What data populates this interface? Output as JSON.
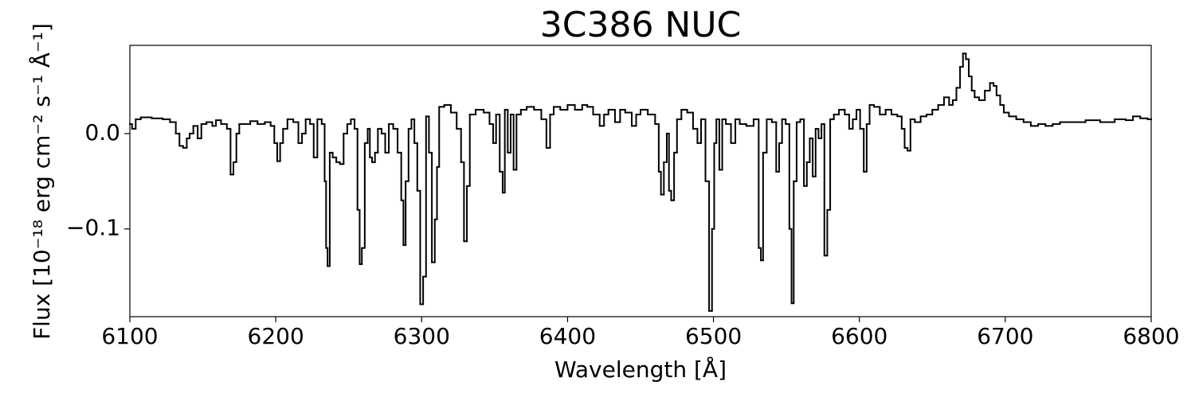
{
  "chart_data": {
    "type": "line",
    "title": "3C386 NUC",
    "xlabel": "Wavelength [Å]",
    "ylabel": "Flux [10⁻¹⁸ erg cm⁻² s⁻¹ Å⁻¹]",
    "drawstyle": "steps-mid",
    "color": "#000000",
    "x": [
      6100,
      6103,
      6105,
      6110,
      6120,
      6125,
      6130,
      6133,
      6135,
      6138,
      6140,
      6142,
      6145,
      6148,
      6150,
      6155,
      6158,
      6160,
      6165,
      6168,
      6170,
      6172,
      6174,
      6176,
      6180,
      6185,
      6190,
      6195,
      6198,
      6200,
      6202,
      6204,
      6206,
      6210,
      6214,
      6217,
      6219,
      6222,
      6225,
      6227,
      6230,
      6233,
      6234,
      6235,
      6236,
      6238,
      6240,
      6243,
      6245,
      6248,
      6250,
      6253,
      6255,
      6257,
      6258,
      6260,
      6262,
      6264,
      6265,
      6267,
      6269,
      6271,
      6274,
      6276,
      6279,
      6282,
      6285,
      6287,
      6288,
      6290,
      6292,
      6294,
      6296,
      6298,
      6300,
      6302,
      6304,
      6306,
      6308,
      6310,
      6311,
      6313,
      6318,
      6322,
      6326,
      6328,
      6330,
      6332,
      6334,
      6340,
      6345,
      6348,
      6350,
      6352,
      6355,
      6356,
      6358,
      6360,
      6362,
      6364,
      6366,
      6370,
      6374,
      6380,
      6384,
      6387,
      6389,
      6392,
      6398,
      6402,
      6408,
      6412,
      6415,
      6420,
      6424,
      6426,
      6430,
      6435,
      6437,
      6442,
      6446,
      6448,
      6452,
      6458,
      6462,
      6463,
      6465,
      6467,
      6469,
      6470,
      6472,
      6474,
      6476,
      6480,
      6484,
      6488,
      6490,
      6493,
      6496,
      6498,
      6500,
      6501,
      6503,
      6505,
      6507,
      6510,
      6514,
      6516,
      6520,
      6525,
      6530,
      6532,
      6533,
      6535,
      6538,
      6542,
      6544,
      6546,
      6548,
      6551,
      6553,
      6554,
      6556,
      6558,
      6561,
      6563,
      6565,
      6567,
      6569,
      6571,
      6573,
      6575,
      6577,
      6579,
      6581,
      6584,
      6588,
      6592,
      6594,
      6597,
      6599,
      6602,
      6604,
      6606,
      6608,
      6612,
      6616,
      6620,
      6624,
      6628,
      6630,
      6632,
      6634,
      6636,
      6640,
      6644,
      6648,
      6652,
      6656,
      6660,
      6663,
      6665,
      6668,
      6670,
      6672,
      6674,
      6676,
      6678,
      6680,
      6684,
      6688,
      6691,
      6693,
      6695,
      6698,
      6700,
      6705,
      6710,
      6715,
      6720,
      6725,
      6730,
      6735,
      6740,
      6750,
      6760,
      6770,
      6780,
      6785,
      6790,
      6795,
      6800
    ],
    "values": [
      0.01,
      0.005,
      0.015,
      0.017,
      0.016,
      0.015,
      0.012,
      0.0,
      -0.013,
      -0.015,
      -0.005,
      0.0,
      0.008,
      -0.005,
      0.01,
      0.012,
      0.008,
      0.014,
      0.01,
      0.005,
      -0.043,
      -0.03,
      0.0,
      0.01,
      0.01,
      0.013,
      0.01,
      0.012,
      0.008,
      -0.01,
      -0.029,
      -0.01,
      0.005,
      0.015,
      0.012,
      -0.01,
      0.0,
      0.015,
      0.01,
      -0.025,
      0.015,
      0.01,
      -0.05,
      -0.12,
      -0.139,
      -0.02,
      -0.025,
      -0.03,
      -0.032,
      0.0,
      0.01,
      0.015,
      0.005,
      -0.08,
      -0.137,
      -0.12,
      -0.01,
      0.005,
      -0.025,
      -0.03,
      -0.02,
      0.005,
      0.0,
      -0.02,
      0.01,
      0.005,
      -0.02,
      -0.07,
      -0.117,
      -0.05,
      0.005,
      0.015,
      -0.01,
      -0.06,
      -0.179,
      -0.15,
      0.018,
      -0.02,
      -0.135,
      -0.09,
      -0.035,
      0.028,
      0.03,
      0.022,
      0.005,
      -0.03,
      -0.113,
      -0.055,
      0.02,
      0.025,
      0.022,
      0.01,
      -0.01,
      0.02,
      -0.04,
      -0.062,
      0.025,
      -0.02,
      0.02,
      -0.038,
      0.02,
      0.025,
      0.028,
      0.025,
      0.015,
      -0.015,
      0.02,
      0.028,
      0.025,
      0.03,
      0.025,
      0.03,
      0.028,
      0.02,
      0.008,
      0.02,
      0.025,
      0.012,
      0.025,
      0.022,
      0.008,
      0.02,
      0.025,
      0.02,
      0.01,
      -0.04,
      -0.064,
      -0.03,
      0.0,
      -0.06,
      -0.07,
      -0.02,
      0.015,
      0.025,
      0.022,
      0.005,
      -0.01,
      0.015,
      -0.05,
      -0.186,
      -0.1,
      -0.01,
      0.015,
      -0.038,
      0.015,
      0.01,
      -0.01,
      0.015,
      0.01,
      0.008,
      0.015,
      -0.12,
      -0.133,
      -0.02,
      0.015,
      0.012,
      -0.04,
      -0.01,
      0.015,
      0.01,
      -0.1,
      -0.178,
      -0.05,
      0.012,
      0.015,
      -0.055,
      -0.03,
      -0.005,
      -0.045,
      0.005,
      -0.005,
      0.01,
      -0.128,
      -0.08,
      0.015,
      0.02,
      0.025,
      0.02,
      0.005,
      0.015,
      0.025,
      0.005,
      -0.04,
      0.01,
      0.03,
      0.028,
      0.02,
      0.025,
      0.02,
      0.018,
      0.005,
      -0.015,
      -0.018,
      0.015,
      0.012,
      0.018,
      0.02,
      0.025,
      0.03,
      0.038,
      0.03,
      0.035,
      0.048,
      0.07,
      0.084,
      0.078,
      0.06,
      0.045,
      0.038,
      0.035,
      0.045,
      0.053,
      0.05,
      0.04,
      0.03,
      0.022,
      0.018,
      0.015,
      0.012,
      0.008,
      0.01,
      0.008,
      0.01,
      0.012,
      0.012,
      0.014,
      0.012,
      0.015,
      0.014,
      0.018,
      0.016,
      0.015
    ],
    "xlim": [
      6100,
      6800
    ],
    "xticks": [
      6100,
      6200,
      6300,
      6400,
      6500,
      6600,
      6700,
      6800
    ],
    "ylim": [
      -0.192,
      0.0925
    ],
    "yticks": [
      {
        "value": 0,
        "label": "0.0"
      },
      {
        "value": -0.1,
        "label": "−0.1"
      }
    ]
  }
}
